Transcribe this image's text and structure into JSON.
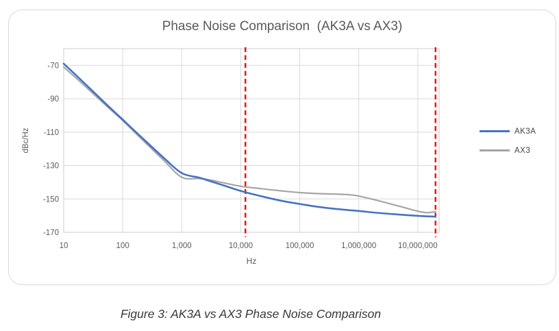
{
  "figure": {
    "title": "Phase Noise Comparison  (AK3A vs AX3)",
    "caption": "Figure 3: AK3A vs AX3 Phase Noise Comparison"
  },
  "chart_data": {
    "type": "line",
    "title": "Phase Noise Comparison (AK3A vs AX3)",
    "xlabel": "Hz",
    "ylabel": "dBc/Hz",
    "x_scale": "log",
    "x_range": [
      10,
      23000000
    ],
    "y_range": [
      -170,
      -60
    ],
    "grid": true,
    "legend_position": "right",
    "colors": {
      "gridline": "#d9d9d9",
      "plot_border": "#cdcdcd",
      "tick_label": "#595959",
      "cursor": "#ff0000"
    },
    "x_ticks": [
      {
        "f": 10,
        "label": "10"
      },
      {
        "f": 100,
        "label": "100"
      },
      {
        "f": 1000,
        "label": "1,000"
      },
      {
        "f": 10000,
        "label": "10,000"
      },
      {
        "f": 100000,
        "label": "100,000"
      },
      {
        "f": 1000000,
        "label": "1,000,000"
      },
      {
        "f": 10000000,
        "label": "10,000,000"
      }
    ],
    "y_ticks": [
      {
        "v": -70,
        "label": "-70"
      },
      {
        "v": -90,
        "label": "-90"
      },
      {
        "v": -110,
        "label": "-110"
      },
      {
        "v": -130,
        "label": "-130"
      },
      {
        "v": -150,
        "label": "-150"
      },
      {
        "v": -170,
        "label": "-170"
      }
    ],
    "cursor_lines": {
      "style": "dashed",
      "color": "#ff0000",
      "freqs": [
        12000,
        20000000
      ]
    },
    "series": [
      {
        "name": "AK3A",
        "color": "#4472c4",
        "points": [
          [
            10,
            -69
          ],
          [
            20,
            -79
          ],
          [
            50,
            -92.5
          ],
          [
            100,
            -102.5
          ],
          [
            200,
            -112.5
          ],
          [
            500,
            -125.5
          ],
          [
            1000,
            -134.5
          ],
          [
            2000,
            -137.3
          ],
          [
            3000,
            -139.3
          ],
          [
            5000,
            -141.8
          ],
          [
            10000,
            -145.2
          ],
          [
            20000,
            -148
          ],
          [
            50000,
            -151.2
          ],
          [
            100000,
            -153
          ],
          [
            200000,
            -154.7
          ],
          [
            500000,
            -156.3
          ],
          [
            1000000,
            -157.2
          ],
          [
            2000000,
            -158.3
          ],
          [
            5000000,
            -159.4
          ],
          [
            10000000,
            -160.1
          ],
          [
            20000000,
            -160.6
          ]
        ]
      },
      {
        "name": "AX3",
        "color": "#a5a5a5",
        "points": [
          [
            10,
            -71
          ],
          [
            20,
            -80.5
          ],
          [
            50,
            -93.5
          ],
          [
            100,
            -103
          ],
          [
            200,
            -113.5
          ],
          [
            500,
            -127
          ],
          [
            1000,
            -137
          ],
          [
            2000,
            -137.8
          ],
          [
            3000,
            -138.6
          ],
          [
            5000,
            -140.3
          ],
          [
            10000,
            -142.4
          ],
          [
            20000,
            -143.7
          ],
          [
            50000,
            -145.2
          ],
          [
            100000,
            -146.2
          ],
          [
            200000,
            -146.8
          ],
          [
            400000,
            -147.1
          ],
          [
            700000,
            -147.5
          ],
          [
            1000000,
            -148.3
          ],
          [
            2000000,
            -150.8
          ],
          [
            5000000,
            -154.5
          ],
          [
            10000000,
            -157.3
          ],
          [
            14000000,
            -158.2
          ],
          [
            20000000,
            -157.7
          ]
        ]
      }
    ]
  }
}
